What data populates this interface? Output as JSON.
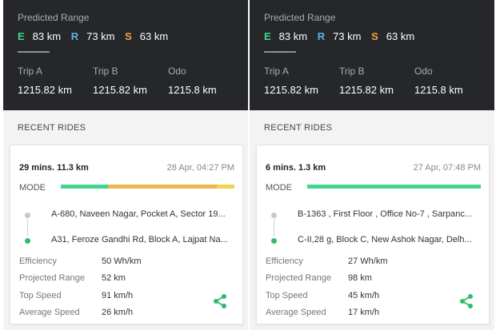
{
  "colors": {
    "eco": "#3fd68e",
    "ride": "#5ab4e8",
    "sport": "#f0a83a",
    "mode_yellow": "#f2d34a",
    "share": "#2fbb6a"
  },
  "panels": [
    {
      "predicted_range": {
        "label": "Predicted Range",
        "modes": [
          {
            "letter": "E",
            "value": "83 km",
            "color": "#3fd68e"
          },
          {
            "letter": "R",
            "value": "73 km",
            "color": "#5ab4e8"
          },
          {
            "letter": "S",
            "value": "63 km",
            "color": "#f0a83a"
          }
        ]
      },
      "trips": [
        {
          "label": "Trip A",
          "value": "1215.82 km"
        },
        {
          "label": "Trip B",
          "value": "1215.82 km"
        },
        {
          "label": "Odo",
          "value": "1215.8 km"
        }
      ],
      "recent_rides_label": "RECENT RIDES",
      "ride": {
        "duration": "29 mins. 11.3 km",
        "datetime": "28 Apr, 04:27 PM",
        "mode_label": "MODE",
        "mode_segments": [
          {
            "fraction": 0.27,
            "color": "#3fd68e"
          },
          {
            "fraction": 0.63,
            "color": "#f0b552"
          },
          {
            "fraction": 0.1,
            "color": "#f2d34a"
          }
        ],
        "start_address": "A-680, Naveen Nagar, Pocket A, Sector 19...",
        "end_address": "A31, Feroze Gandhi Rd, Block A, Lajpat Na...",
        "stats": [
          {
            "label": "Efficiency",
            "value": "50 Wh/km"
          },
          {
            "label": "Projected Range",
            "value": "52 km"
          },
          {
            "label": "Top Speed",
            "value": "91 km/h"
          },
          {
            "label": "Average Speed",
            "value": "26 km/h"
          }
        ],
        "share_icon": "share-icon"
      }
    },
    {
      "predicted_range": {
        "label": "Predicted Range",
        "modes": [
          {
            "letter": "E",
            "value": "83 km",
            "color": "#3fd68e"
          },
          {
            "letter": "R",
            "value": "73 km",
            "color": "#5ab4e8"
          },
          {
            "letter": "S",
            "value": "63 km",
            "color": "#f0a83a"
          }
        ]
      },
      "trips": [
        {
          "label": "Trip A",
          "value": "1215.82 km"
        },
        {
          "label": "Trip B",
          "value": "1215.82 km"
        },
        {
          "label": "Odo",
          "value": "1215.8 km"
        }
      ],
      "recent_rides_label": "RECENT RIDES",
      "ride": {
        "duration": "6 mins. 1.3 km",
        "datetime": "27 Apr, 07:48 PM",
        "mode_label": "MODE",
        "mode_segments": [
          {
            "fraction": 1.0,
            "color": "#3fd68e"
          }
        ],
        "start_address": "B-1363 , First Floor , Office No-7 , Sarpanc...",
        "end_address": "C-II,28 g, Block C, New Ashok Nagar, Delh...",
        "stats": [
          {
            "label": "Efficiency",
            "value": "27 Wh/km"
          },
          {
            "label": "Projected Range",
            "value": "98 km"
          },
          {
            "label": "Top Speed",
            "value": "45 km/h"
          },
          {
            "label": "Average Speed",
            "value": "17 km/h"
          }
        ],
        "share_icon": "share-icon"
      }
    }
  ]
}
